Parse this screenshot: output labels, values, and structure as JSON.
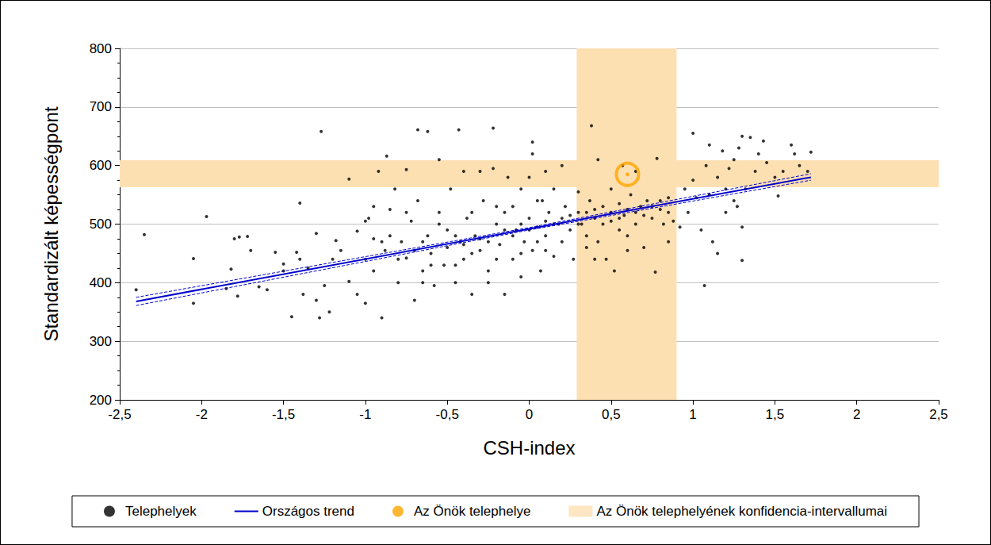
{
  "chart_data": {
    "type": "scatter",
    "x_label": "CSH-index",
    "y_label": "Standardizált képességpont",
    "xlim": [
      -2.5,
      2.5
    ],
    "xticks": [
      {
        "value": -2.5,
        "label": "-2,5"
      },
      -2,
      {
        "value": -1.5,
        "label": "-1,5"
      },
      -1,
      {
        "value": -0.5,
        "label": "-0,5"
      },
      0,
      {
        "value": 0.5,
        "label": "0,5"
      },
      1,
      {
        "value": 1.5,
        "label": "1,5"
      },
      2,
      {
        "value": 2.5,
        "label": "2,5"
      }
    ],
    "ylim": [
      200,
      800
    ],
    "yticks": [
      200,
      300,
      400,
      500,
      600,
      700,
      800
    ],
    "grid": "y",
    "legend": "bottom",
    "series": [
      {
        "name": "Telephelyek",
        "type": "scatter",
        "color": "#000000",
        "marker": "circle",
        "points": [
          [
            -2.4,
            388
          ],
          [
            -2.35,
            482
          ],
          [
            -2.05,
            441
          ],
          [
            -2.05,
            365
          ],
          [
            -1.97,
            513
          ],
          [
            -1.85,
            390
          ],
          [
            -1.82,
            423
          ],
          [
            -1.8,
            475
          ],
          [
            -1.78,
            377
          ],
          [
            -1.77,
            478
          ],
          [
            -1.72,
            479
          ],
          [
            -1.7,
            455
          ],
          [
            -1.65,
            393
          ],
          [
            -1.6,
            388
          ],
          [
            -1.55,
            452
          ],
          [
            -1.5,
            432
          ],
          [
            -1.5,
            420
          ],
          [
            -1.45,
            342
          ],
          [
            -1.42,
            452
          ],
          [
            -1.4,
            536
          ],
          [
            -1.4,
            440
          ],
          [
            -1.38,
            380
          ],
          [
            -1.35,
            425
          ],
          [
            -1.3,
            484
          ],
          [
            -1.3,
            370
          ],
          [
            -1.28,
            340
          ],
          [
            -1.27,
            658
          ],
          [
            -1.25,
            395
          ],
          [
            -1.22,
            350
          ],
          [
            -1.2,
            440
          ],
          [
            -1.18,
            472
          ],
          [
            -1.15,
            455
          ],
          [
            -1.1,
            577
          ],
          [
            -1.1,
            402
          ],
          [
            -1.05,
            488
          ],
          [
            -1.05,
            380
          ],
          [
            -1.0,
            440
          ],
          [
            -1.0,
            365
          ],
          [
            -0.98,
            510
          ],
          [
            -0.95,
            475
          ],
          [
            -0.95,
            420
          ],
          [
            -0.92,
            590
          ],
          [
            -0.9,
            340
          ],
          [
            -0.88,
            455
          ],
          [
            -0.87,
            616
          ],
          [
            -0.85,
            525
          ],
          [
            -0.82,
            560
          ],
          [
            -0.8,
            400
          ],
          [
            -0.78,
            470
          ],
          [
            -0.75,
            593
          ],
          [
            -0.75,
            442
          ],
          [
            -0.72,
            505
          ],
          [
            -0.7,
            370
          ],
          [
            -0.68,
            661
          ],
          [
            -0.68,
            540
          ],
          [
            -0.65,
            420
          ],
          [
            -0.62,
            658
          ],
          [
            -0.62,
            480
          ],
          [
            -0.6,
            450
          ],
          [
            -0.58,
            395
          ],
          [
            -0.55,
            610
          ],
          [
            -0.55,
            520
          ],
          [
            -0.52,
            430
          ],
          [
            -0.5,
            490
          ],
          [
            -0.48,
            560
          ],
          [
            -0.45,
            400
          ],
          [
            -0.43,
            661
          ],
          [
            -0.42,
            470
          ],
          [
            -0.4,
            590
          ],
          [
            -0.4,
            440
          ],
          [
            -0.38,
            510
          ],
          [
            -0.35,
            380
          ],
          [
            -0.33,
            480
          ],
          [
            -0.3,
            590
          ],
          [
            -0.3,
            455
          ],
          [
            -0.28,
            540
          ],
          [
            -0.25,
            420
          ],
          [
            -0.22,
            664
          ],
          [
            -0.22,
            595
          ],
          [
            -0.2,
            500
          ],
          [
            -0.18,
            465
          ],
          [
            -0.15,
            380
          ],
          [
            -0.13,
            580
          ],
          [
            -0.1,
            530
          ],
          [
            -0.1,
            440
          ],
          [
            -0.08,
            490
          ],
          [
            -0.05,
            560
          ],
          [
            -0.05,
            410
          ],
          [
            -0.03,
            470
          ],
          [
            0.0,
            580
          ],
          [
            0.0,
            510
          ],
          [
            0.02,
            640
          ],
          [
            0.02,
            620
          ],
          [
            0.02,
            455
          ],
          [
            0.05,
            540
          ],
          [
            0.05,
            495
          ],
          [
            0.07,
            420
          ],
          [
            0.1,
            590
          ],
          [
            0.1,
            480
          ],
          [
            0.12,
            520
          ],
          [
            0.15,
            445
          ],
          [
            0.15,
            560
          ],
          [
            0.18,
            500
          ],
          [
            0.2,
            600
          ],
          [
            0.2,
            470
          ],
          [
            0.22,
            530
          ],
          [
            0.25,
            490
          ],
          [
            0.27,
            440
          ],
          [
            0.3,
            520
          ],
          [
            0.3,
            555
          ],
          [
            0.32,
            500
          ],
          [
            0.35,
            480
          ],
          [
            0.37,
            540
          ],
          [
            0.4,
            510
          ],
          [
            0.42,
            470
          ],
          [
            0.45,
            530
          ],
          [
            0.47,
            440
          ],
          [
            0.5,
            560
          ],
          [
            0.5,
            505
          ],
          [
            0.52,
            420
          ],
          [
            0.55,
            490
          ],
          [
            0.55,
            535
          ],
          [
            0.57,
            600
          ],
          [
            0.58,
            515
          ],
          [
            0.6,
            480
          ],
          [
            0.62,
            550
          ],
          [
            0.65,
            590
          ],
          [
            0.65,
            500
          ],
          [
            0.68,
            530
          ],
          [
            0.7,
            460
          ],
          [
            0.72,
            540
          ],
          [
            0.75,
            510
          ],
          [
            0.77,
            418
          ],
          [
            0.78,
            612
          ],
          [
            0.8,
            540
          ],
          [
            0.82,
            500
          ],
          [
            0.85,
            545
          ],
          [
            0.88,
            505
          ],
          [
            0.38,
            668
          ],
          [
            0.42,
            610
          ],
          [
            0.4,
            440
          ],
          [
            0.92,
            495
          ],
          [
            0.95,
            560
          ],
          [
            0.97,
            520
          ],
          [
            1.0,
            575
          ],
          [
            1.0,
            655
          ],
          [
            1.02,
            545
          ],
          [
            1.05,
            490
          ],
          [
            1.07,
            395
          ],
          [
            1.08,
            600
          ],
          [
            1.1,
            635
          ],
          [
            1.1,
            550
          ],
          [
            1.12,
            470
          ],
          [
            1.15,
            450
          ],
          [
            1.15,
            580
          ],
          [
            1.18,
            625
          ],
          [
            1.2,
            560
          ],
          [
            1.22,
            595
          ],
          [
            1.25,
            540
          ],
          [
            1.25,
            610
          ],
          [
            1.28,
            630
          ],
          [
            1.3,
            650
          ],
          [
            1.3,
            438
          ],
          [
            1.32,
            560
          ],
          [
            1.35,
            648
          ],
          [
            1.38,
            590
          ],
          [
            1.4,
            620
          ],
          [
            1.43,
            642
          ],
          [
            1.45,
            605
          ],
          [
            1.5,
            580
          ],
          [
            1.52,
            548
          ],
          [
            1.55,
            590
          ],
          [
            1.6,
            635
          ],
          [
            1.62,
            620
          ],
          [
            1.65,
            600
          ],
          [
            1.7,
            590
          ],
          [
            1.72,
            623
          ],
          [
            1.2,
            520
          ],
          [
            1.27,
            530
          ],
          [
            1.3,
            495
          ],
          [
            -0.9,
            470
          ],
          [
            -0.85,
            480
          ],
          [
            -0.8,
            440
          ],
          [
            -0.7,
            455
          ],
          [
            -0.65,
            470
          ],
          [
            -0.6,
            430
          ],
          [
            -0.5,
            460
          ],
          [
            -0.45,
            480
          ],
          [
            -0.4,
            465
          ],
          [
            -0.35,
            450
          ],
          [
            -0.3,
            475
          ],
          [
            -0.25,
            470
          ],
          [
            -0.2,
            440
          ],
          [
            -0.15,
            490
          ],
          [
            -0.1,
            480
          ],
          [
            -0.05,
            500
          ],
          [
            0.0,
            490
          ],
          [
            0.05,
            470
          ],
          [
            0.1,
            505
          ],
          [
            0.15,
            500
          ],
          [
            0.2,
            510
          ],
          [
            0.25,
            515
          ],
          [
            0.3,
            500
          ],
          [
            0.35,
            520
          ],
          [
            0.4,
            525
          ],
          [
            0.45,
            500
          ],
          [
            0.5,
            520
          ],
          [
            0.55,
            510
          ],
          [
            0.6,
            525
          ],
          [
            0.65,
            520
          ],
          [
            0.7,
            515
          ],
          [
            0.75,
            530
          ],
          [
            0.8,
            525
          ],
          [
            0.85,
            520
          ],
          [
            -1.0,
            505
          ],
          [
            -0.95,
            530
          ],
          [
            -0.75,
            520
          ],
          [
            -0.55,
            500
          ],
          [
            -0.35,
            520
          ],
          [
            -0.15,
            520
          ],
          [
            0.08,
            540
          ],
          [
            -0.2,
            530
          ],
          [
            -0.45,
            430
          ],
          [
            -0.65,
            400
          ],
          [
            -0.25,
            400
          ],
          [
            -0.05,
            450
          ],
          [
            0.1,
            455
          ],
          [
            0.35,
            460
          ],
          [
            0.6,
            455
          ],
          [
            0.85,
            470
          ]
        ]
      },
      {
        "name": "Országos trend",
        "type": "line",
        "color": "#0000cc",
        "line_style": "solid",
        "x": [
          -2.4,
          0,
          1.72
        ],
        "values": [
          368,
          492,
          580
        ],
        "lower": [
          361,
          490,
          575
        ],
        "upper": [
          375,
          494,
          586
        ]
      },
      {
        "name": "Az Önök telephelye",
        "type": "scatter",
        "color": "#ffa500",
        "marker": "circle",
        "points": [
          [
            0.6,
            585
          ]
        ]
      },
      {
        "name": "Az Önök telephelyének konfidencia-intervallumai",
        "type": "area",
        "color": "#fde0b2",
        "x_range": [
          0.29,
          0.9
        ],
        "y_range": [
          563,
          609
        ]
      }
    ]
  }
}
